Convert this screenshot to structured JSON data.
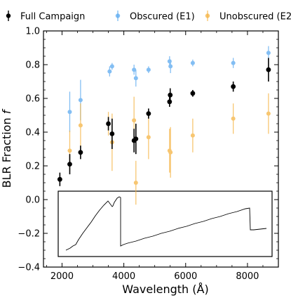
{
  "chart_data": {
    "type": "scatter",
    "xlabel": "Wavelength (Å)",
    "ylabel": "BLR Fraction f",
    "ylabel_text": "BLR Fraction ",
    "ylabel_symbol": "f",
    "xlim": [
      1400,
      9000
    ],
    "ylim": [
      -0.4,
      1.0
    ],
    "xticks": [
      2000,
      4000,
      6000,
      8000
    ],
    "yticks": [
      -0.4,
      -0.2,
      0.0,
      0.2,
      0.4,
      0.6,
      0.8,
      1.0
    ],
    "xtick_labels": [
      "2000",
      "4000",
      "6000",
      "8000"
    ],
    "ytick_labels": [
      "−0.4",
      "−0.2",
      "0.0",
      "0.2",
      "0.4",
      "0.6",
      "0.8",
      "1.0"
    ],
    "legend_position": "top",
    "series": [
      {
        "name": "Full Campaign",
        "color": "#000000",
        "points": [
          {
            "x": 1930,
            "y": 0.12,
            "err": 0.04
          },
          {
            "x": 2250,
            "y": 0.21,
            "err": 0.06
          },
          {
            "x": 2600,
            "y": 0.28,
            "err": 0.04
          },
          {
            "x": 3500,
            "y": 0.45,
            "err": 0.04
          },
          {
            "x": 3620,
            "y": 0.39,
            "err": 0.09
          },
          {
            "x": 4330,
            "y": 0.35,
            "err": 0.07
          },
          {
            "x": 4390,
            "y": 0.36,
            "err": 0.09
          },
          {
            "x": 4800,
            "y": 0.51,
            "err": 0.03
          },
          {
            "x": 5480,
            "y": 0.58,
            "err": 0.03
          },
          {
            "x": 5500,
            "y": 0.62,
            "err": 0.04
          },
          {
            "x": 6230,
            "y": 0.63,
            "err": 0.02
          },
          {
            "x": 7540,
            "y": 0.67,
            "err": 0.03
          },
          {
            "x": 8680,
            "y": 0.77,
            "err": 0.07
          }
        ]
      },
      {
        "name": "Obscured (E1)",
        "color": "#5aa9f0",
        "points": [
          {
            "x": 2250,
            "y": 0.52,
            "err": 0.12
          },
          {
            "x": 2600,
            "y": 0.59,
            "err": 0.12
          },
          {
            "x": 3540,
            "y": 0.76,
            "err": 0.03
          },
          {
            "x": 3620,
            "y": 0.79,
            "err": 0.02
          },
          {
            "x": 4330,
            "y": 0.77,
            "err": 0.03
          },
          {
            "x": 4390,
            "y": 0.72,
            "err": 0.05
          },
          {
            "x": 4800,
            "y": 0.77,
            "err": 0.02
          },
          {
            "x": 5480,
            "y": 0.82,
            "err": 0.03
          },
          {
            "x": 5510,
            "y": 0.79,
            "err": 0.04
          },
          {
            "x": 6230,
            "y": 0.81,
            "err": 0.02
          },
          {
            "x": 7540,
            "y": 0.81,
            "err": 0.03
          },
          {
            "x": 8680,
            "y": 0.87,
            "err": 0.04
          }
        ]
      },
      {
        "name": "Unobscured (E2)",
        "color": "#f5b342",
        "points": [
          {
            "x": 2250,
            "y": 0.29,
            "err": 0.12
          },
          {
            "x": 2600,
            "y": 0.44,
            "err": 0.13
          },
          {
            "x": 3500,
            "y": 0.45,
            "err": 0.07
          },
          {
            "x": 3620,
            "y": 0.34,
            "err": 0.17
          },
          {
            "x": 4330,
            "y": 0.47,
            "err": 0.14
          },
          {
            "x": 4390,
            "y": 0.1,
            "err": 0.13
          },
          {
            "x": 4800,
            "y": 0.37,
            "err": 0.13
          },
          {
            "x": 5480,
            "y": 0.29,
            "err": 0.13
          },
          {
            "x": 5510,
            "y": 0.28,
            "err": 0.15
          },
          {
            "x": 6230,
            "y": 0.38,
            "err": 0.1
          },
          {
            "x": 7540,
            "y": 0.48,
            "err": 0.09
          },
          {
            "x": 8680,
            "y": 0.51,
            "err": 0.12
          }
        ]
      }
    ]
  }
}
